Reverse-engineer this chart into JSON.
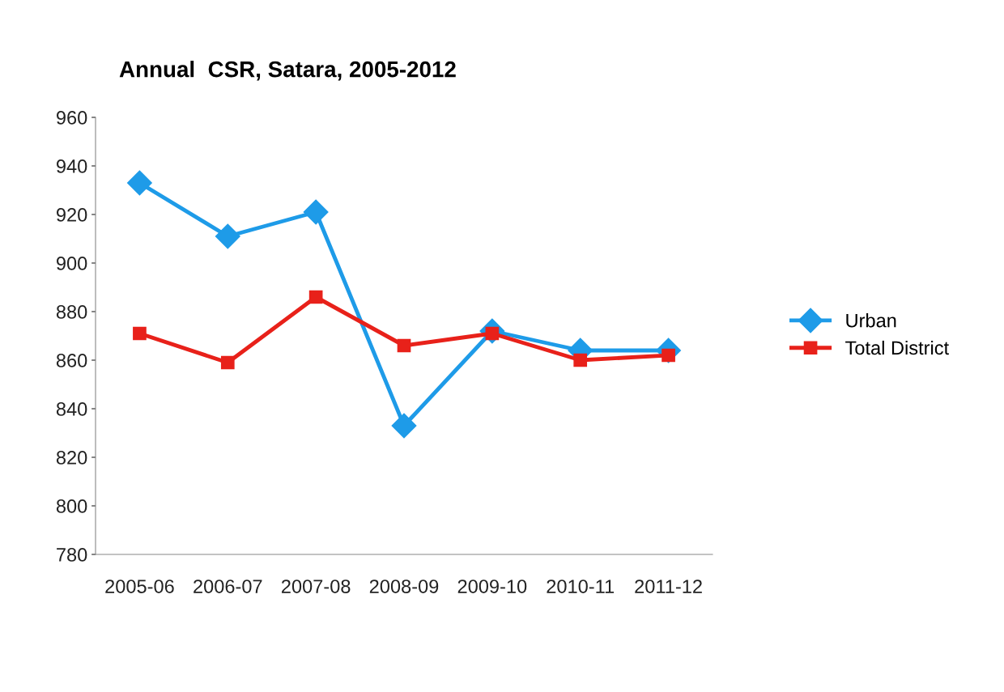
{
  "chart_data": {
    "type": "line",
    "title": "Annual  CSR, Satara, 2005-2012",
    "categories": [
      "2005-06",
      "2006-07",
      "2007-08",
      "2008-09",
      "2009-10",
      "2010-11",
      "2011-12"
    ],
    "series": [
      {
        "name": "Urban",
        "color": "#1e9be8",
        "marker": "diamond",
        "values": [
          933,
          911,
          921,
          833,
          872,
          864,
          864
        ]
      },
      {
        "name": "Total District",
        "color": "#e8211a",
        "marker": "square",
        "values": [
          871,
          859,
          886,
          866,
          871,
          860,
          862
        ]
      }
    ],
    "ylim": [
      780,
      960
    ],
    "yticks": [
      780,
      800,
      820,
      840,
      860,
      880,
      900,
      920,
      940,
      960
    ],
    "grid": false,
    "legend": "right",
    "line_style": "solid"
  }
}
